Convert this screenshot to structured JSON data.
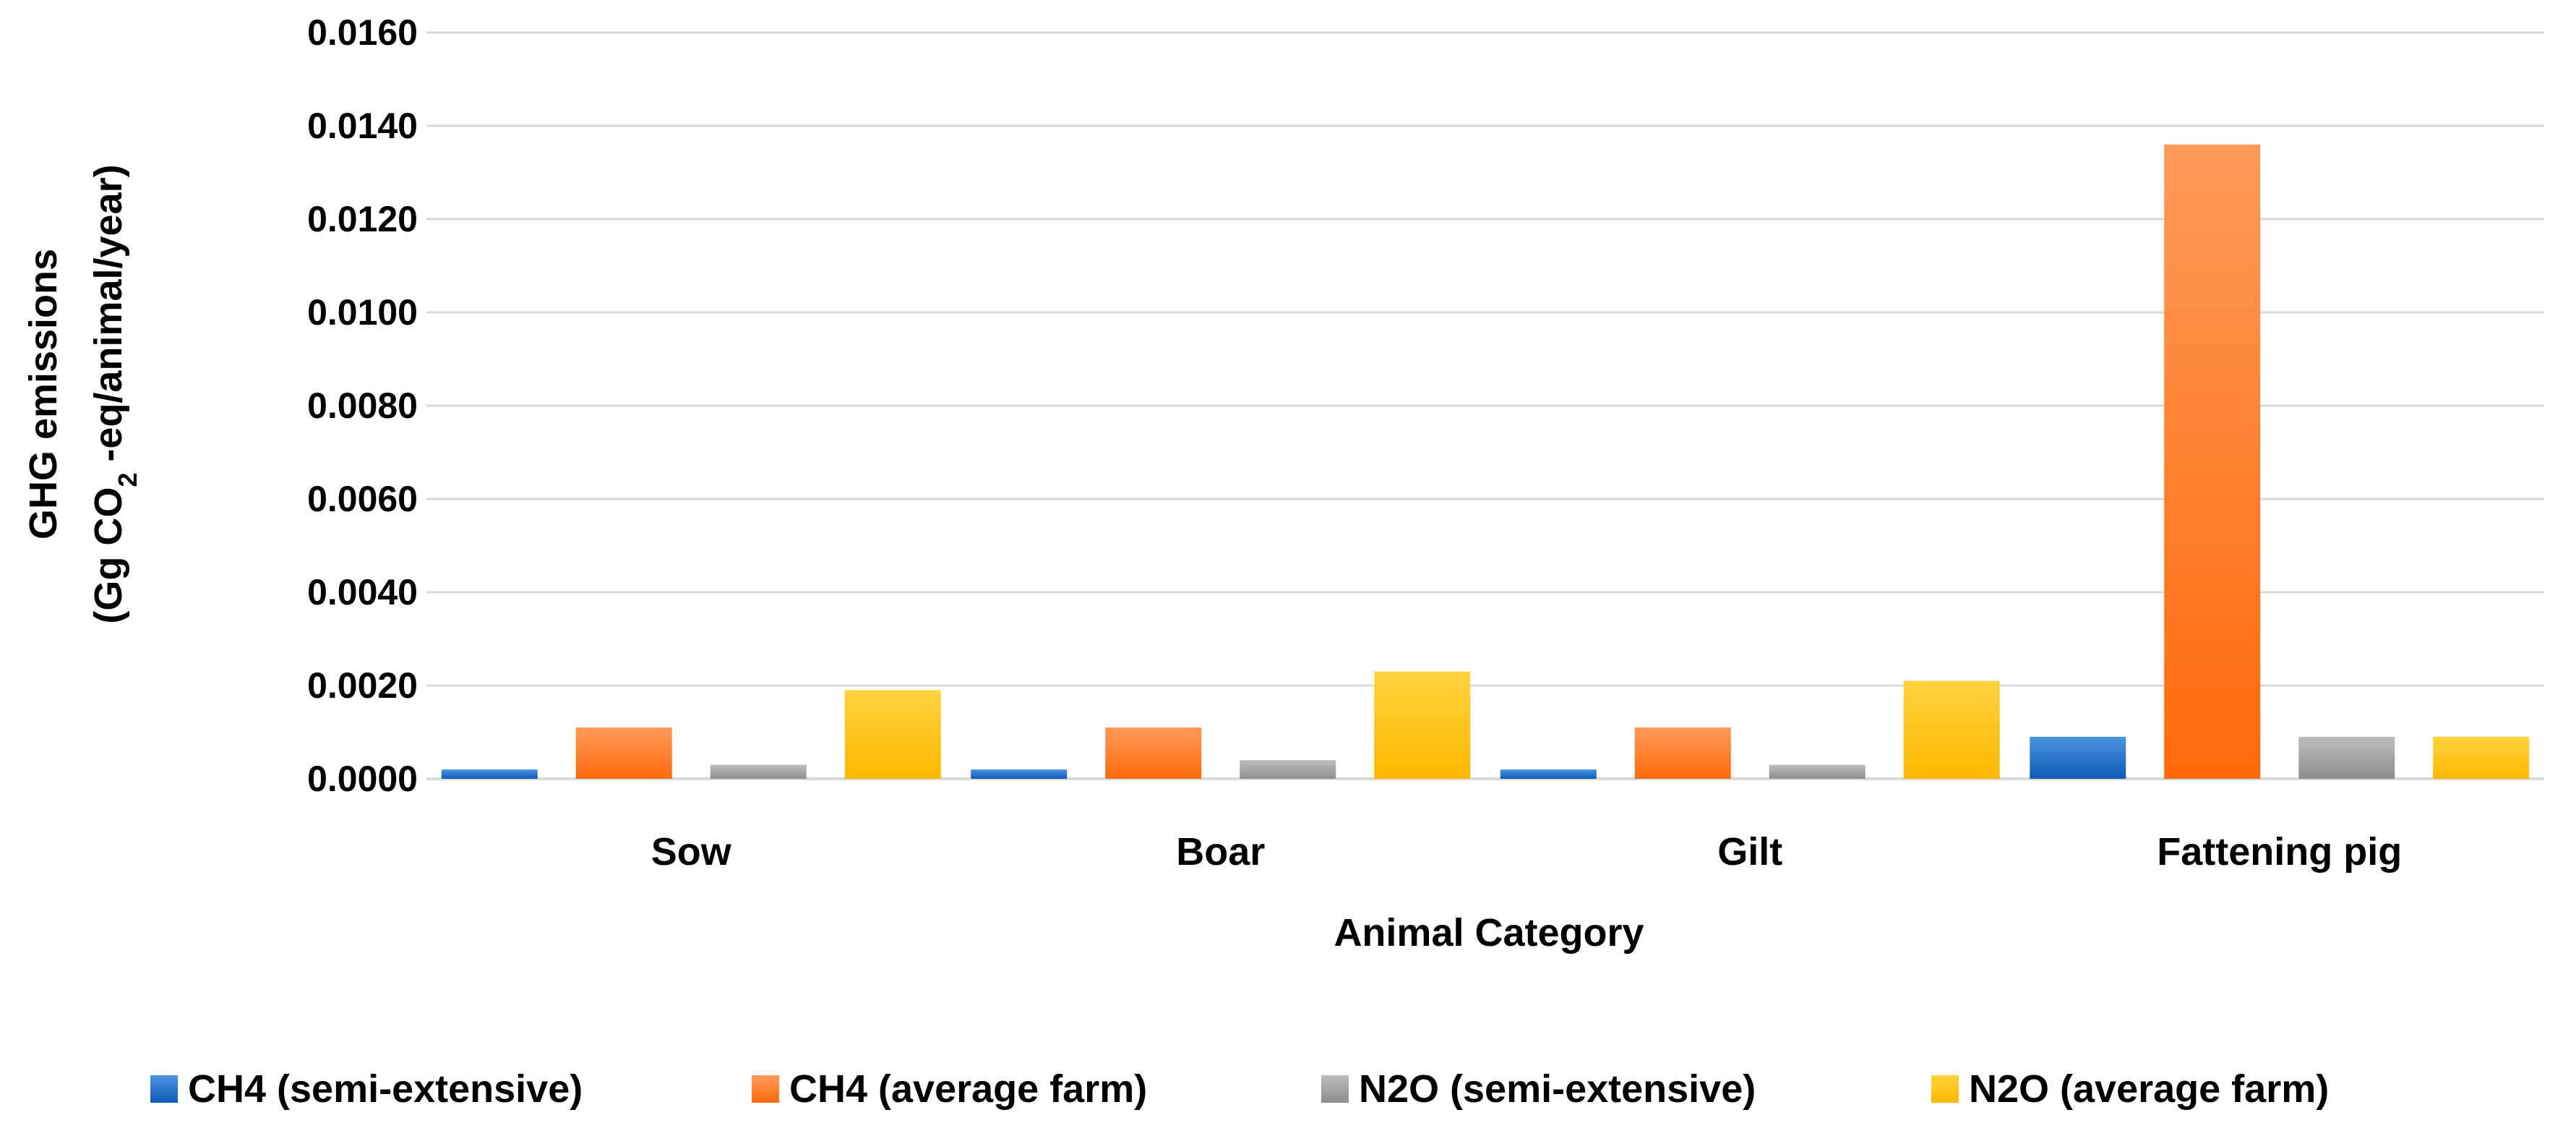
{
  "chart_data": {
    "type": "bar",
    "categories": [
      "Sow",
      "Boar",
      "Gilt",
      "Fattening pig"
    ],
    "series": [
      {
        "name": "CH4 (semi-extensive)",
        "values": [
          0.0002,
          0.0002,
          0.0002,
          0.0009
        ],
        "color": "#1565c0",
        "gradient": [
          "#4d94e0",
          "#0e5ab8"
        ]
      },
      {
        "name": "CH4 (average farm)",
        "values": [
          0.0011,
          0.0011,
          0.0011,
          0.0136
        ],
        "color": "#ff6d12",
        "gradient": [
          "#ff9a5a",
          "#ff6a0a"
        ]
      },
      {
        "name": "N2O (semi-extensive)",
        "values": [
          0.0003,
          0.0004,
          0.0003,
          0.0009
        ],
        "color": "#9e9e9e",
        "gradient": [
          "#bdbdbd",
          "#8e8e8e"
        ]
      },
      {
        "name": "N2O (average farm)",
        "values": [
          0.0019,
          0.0023,
          0.0021,
          0.0009
        ],
        "color": "#ffc000",
        "gradient": [
          "#ffd23f",
          "#ffb800"
        ]
      }
    ],
    "yticks": [
      "0.0000",
      "0.0020",
      "0.0040",
      "0.0060",
      "0.0080",
      "0.0100",
      "0.0120",
      "0.0140",
      "0.0160"
    ],
    "ylim": [
      0,
      0.016
    ],
    "xlabel": "Animal Category",
    "ylabel_line1": "GHG emissions",
    "ylabel_line2_pre": "(Gg CO",
    "ylabel_line2_sub": "2",
    "ylabel_line2_post": " -eq/animal/year)",
    "grid": true,
    "legend_position": "bottom"
  }
}
